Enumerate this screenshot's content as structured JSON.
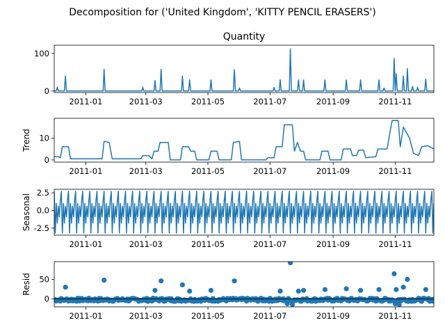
{
  "suptitle": "Decomposition for ('United Kingdom', 'KITTY PENCIL ERASERS')",
  "colors": {
    "series": "#1f77b4",
    "axis": "#000000",
    "background": "#ffffff"
  },
  "x_ticks": [
    "2011-01",
    "2011-03",
    "2011-05",
    "2011-07",
    "2011-09",
    "2011-11"
  ],
  "chart_data": [
    {
      "type": "line",
      "title": "Quantity",
      "ylabel": "",
      "xlim": [
        "2010-12-01",
        "2011-12-09"
      ],
      "ylim": [
        -4,
        122
      ],
      "y_ticks": [
        0,
        100
      ],
      "x_ticks": [
        "2011-01",
        "2011-03",
        "2011-05",
        "2011-07",
        "2011-09",
        "2011-11"
      ],
      "baseline": 0,
      "spikes": [
        [
          "2010-12-04",
          10
        ],
        [
          "2010-12-12",
          40
        ],
        [
          "2011-01-19",
          58
        ],
        [
          "2011-02-26",
          10
        ],
        [
          "2011-03-10",
          28
        ],
        [
          "2011-03-16",
          58
        ],
        [
          "2011-04-06",
          40
        ],
        [
          "2011-04-13",
          30
        ],
        [
          "2011-05-04",
          30
        ],
        [
          "2011-05-27",
          57
        ],
        [
          "2011-06-01",
          8
        ],
        [
          "2011-07-05",
          10
        ],
        [
          "2011-07-11",
          30
        ],
        [
          "2011-07-21",
          112
        ],
        [
          "2011-07-29",
          30
        ],
        [
          "2011-08-03",
          30
        ],
        [
          "2011-08-24",
          30
        ],
        [
          "2011-09-14",
          30
        ],
        [
          "2011-09-28",
          30
        ],
        [
          "2011-10-16",
          30
        ],
        [
          "2011-10-21",
          8
        ],
        [
          "2011-10-31",
          87
        ],
        [
          "2011-11-02",
          46
        ],
        [
          "2011-11-09",
          40
        ],
        [
          "2011-11-13",
          60
        ],
        [
          "2011-11-18",
          12
        ],
        [
          "2011-11-23",
          10
        ],
        [
          "2011-12-01",
          32
        ]
      ]
    },
    {
      "type": "line",
      "title": "",
      "ylabel": "Trend",
      "xlim": [
        "2010-12-01",
        "2011-12-09"
      ],
      "ylim": [
        -1,
        19
      ],
      "y_ticks": [
        0,
        10
      ],
      "x_ticks": [
        "2011-01",
        "2011-03",
        "2011-05",
        "2011-07",
        "2011-09",
        "2011-11"
      ],
      "points": [
        [
          "2010-12-01",
          1.5
        ],
        [
          "2010-12-05",
          1.5
        ],
        [
          "2010-12-07",
          1
        ],
        [
          "2010-12-09",
          6
        ],
        [
          "2010-12-15",
          6
        ],
        [
          "2010-12-17",
          0.5
        ],
        [
          "2011-01-17",
          0.5
        ],
        [
          "2011-01-19",
          8.5
        ],
        [
          "2011-01-24",
          8
        ],
        [
          "2011-01-27",
          0.5
        ],
        [
          "2011-02-24",
          0.5
        ],
        [
          "2011-02-26",
          2
        ],
        [
          "2011-03-04",
          2
        ],
        [
          "2011-03-07",
          0.5
        ],
        [
          "2011-03-09",
          4
        ],
        [
          "2011-03-13",
          4
        ],
        [
          "2011-03-15",
          8
        ],
        [
          "2011-03-23",
          8
        ],
        [
          "2011-03-25",
          0
        ],
        [
          "2011-04-04",
          0
        ],
        [
          "2011-04-06",
          6
        ],
        [
          "2011-04-12",
          6
        ],
        [
          "2011-04-14",
          4
        ],
        [
          "2011-04-18",
          4
        ],
        [
          "2011-04-20",
          0
        ],
        [
          "2011-05-02",
          0
        ],
        [
          "2011-05-04",
          4
        ],
        [
          "2011-05-10",
          4
        ],
        [
          "2011-05-12",
          0
        ],
        [
          "2011-05-24",
          0
        ],
        [
          "2011-05-26",
          8
        ],
        [
          "2011-06-01",
          8.5
        ],
        [
          "2011-06-03",
          0
        ],
        [
          "2011-06-27",
          0
        ],
        [
          "2011-06-29",
          1
        ],
        [
          "2011-07-05",
          1
        ],
        [
          "2011-07-07",
          6
        ],
        [
          "2011-07-13",
          6
        ],
        [
          "2011-07-15",
          16
        ],
        [
          "2011-07-23",
          16
        ],
        [
          "2011-07-25",
          4
        ],
        [
          "2011-07-28",
          8
        ],
        [
          "2011-07-31",
          4
        ],
        [
          "2011-08-03",
          4
        ],
        [
          "2011-08-05",
          0
        ],
        [
          "2011-08-19",
          0
        ],
        [
          "2011-08-21",
          4
        ],
        [
          "2011-08-27",
          4
        ],
        [
          "2011-08-29",
          0
        ],
        [
          "2011-09-09",
          0
        ],
        [
          "2011-09-11",
          5
        ],
        [
          "2011-09-18",
          5
        ],
        [
          "2011-09-20",
          2
        ],
        [
          "2011-09-24",
          2
        ],
        [
          "2011-09-26",
          4.5
        ],
        [
          "2011-10-01",
          4.5
        ],
        [
          "2011-10-03",
          1
        ],
        [
          "2011-10-13",
          1.5
        ],
        [
          "2011-10-15",
          5
        ],
        [
          "2011-10-24",
          5
        ],
        [
          "2011-10-27",
          13
        ],
        [
          "2011-10-29",
          18
        ],
        [
          "2011-11-04",
          18
        ],
        [
          "2011-11-06",
          6
        ],
        [
          "2011-11-09",
          15
        ],
        [
          "2011-11-15",
          10
        ],
        [
          "2011-11-19",
          3
        ],
        [
          "2011-11-24",
          2
        ],
        [
          "2011-11-27",
          6
        ],
        [
          "2011-12-03",
          6.5
        ],
        [
          "2011-12-09",
          5
        ]
      ]
    },
    {
      "type": "line",
      "title": "",
      "ylabel": "Seasonal",
      "xlim": [
        "2010-12-01",
        "2011-12-09"
      ],
      "ylim": [
        -3.5,
        3
      ],
      "y_ticks": [
        2.5,
        0.0,
        -2.5
      ],
      "x_ticks": [
        "2011-01",
        "2011-03",
        "2011-05",
        "2011-07",
        "2011-09",
        "2011-11"
      ],
      "period_days": 7,
      "weekly_pattern": [
        2.7,
        -3.2,
        1.0,
        -1.8,
        0.6,
        -0.9,
        1.4
      ]
    },
    {
      "type": "scatter",
      "title": "",
      "ylabel": "Resid",
      "xlim": [
        "2010-12-01",
        "2011-12-09"
      ],
      "ylim": [
        -20,
        95
      ],
      "y_ticks": [
        0,
        50
      ],
      "x_ticks": [
        "2011-01",
        "2011-03",
        "2011-05",
        "2011-07",
        "2011-09",
        "2011-11"
      ],
      "baseline": -2,
      "outliers": [
        [
          "2010-12-12",
          30
        ],
        [
          "2011-01-19",
          48
        ],
        [
          "2011-03-10",
          22
        ],
        [
          "2011-03-16",
          46
        ],
        [
          "2011-04-06",
          36
        ],
        [
          "2011-04-13",
          20
        ],
        [
          "2011-05-04",
          22
        ],
        [
          "2011-05-27",
          46
        ],
        [
          "2011-07-11",
          20
        ],
        [
          "2011-07-21",
          92
        ],
        [
          "2011-07-29",
          20
        ],
        [
          "2011-08-03",
          22
        ],
        [
          "2011-08-24",
          24
        ],
        [
          "2011-09-14",
          26
        ],
        [
          "2011-09-28",
          22
        ],
        [
          "2011-10-16",
          24
        ],
        [
          "2011-10-31",
          64
        ],
        [
          "2011-11-02",
          24
        ],
        [
          "2011-11-09",
          30
        ],
        [
          "2011-11-13",
          50
        ],
        [
          "2011-12-01",
          24
        ],
        [
          "2011-07-18",
          -12
        ],
        [
          "2011-07-23",
          -14
        ],
        [
          "2011-11-01",
          -12
        ],
        [
          "2011-11-05",
          -14
        ]
      ]
    }
  ]
}
